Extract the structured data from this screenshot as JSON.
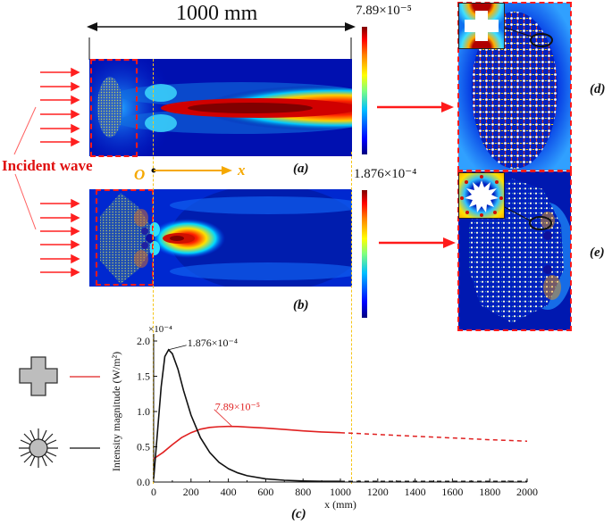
{
  "figure": {
    "dimension_label": "1000 mm",
    "incident_wave_label": "Incident wave",
    "origin_label": "O",
    "axis_x_label": "x",
    "panel_labels": {
      "a": "(a)",
      "b": "(b)",
      "c": "(c)",
      "d": "(d)",
      "e": "(e)"
    },
    "colorbar_a_max": "7.89×10⁻⁵",
    "colorbar_b_max": "1.876×10⁻⁴",
    "colors": {
      "accent_red": "#ff1a1a",
      "guide_yellow": "#f5c518",
      "field_deep_blue": "#00008f"
    },
    "legend": [
      {
        "shape": "cross-icon",
        "line_color": "#e02020",
        "description": "cross-shaped scatterer"
      },
      {
        "shape": "star-icon",
        "line_color": "#111111",
        "description": "star-shaped scatterer"
      }
    ]
  },
  "chart_data": {
    "type": "line",
    "title": "",
    "xlabel": "x (mm)",
    "ylabel": "Intensity magnitude (W/m²)",
    "y_multiplier": "×10⁻⁴",
    "xlim": [
      0,
      2000
    ],
    "ylim": [
      0,
      2.0
    ],
    "x_ticks": [
      "0",
      "200",
      "400",
      "600",
      "800",
      "1000",
      "1200",
      "1400",
      "1600",
      "1800",
      "2000"
    ],
    "y_ticks": [
      "0.0",
      "0.5",
      "1.0",
      "1.5",
      "2.0"
    ],
    "grid": false,
    "annotations": [
      {
        "text": "1.876×10⁻⁴",
        "x": 80,
        "y": 1.876,
        "series": "star"
      },
      {
        "text": "7.89×10⁻⁵",
        "x": 420,
        "y": 0.789,
        "series": "cross"
      }
    ],
    "series": [
      {
        "name": "cross",
        "color": "#e02020",
        "x": [
          0,
          50,
          100,
          150,
          200,
          250,
          300,
          350,
          400,
          450,
          500,
          600,
          700,
          800,
          900,
          1000
        ],
        "y": [
          0.33,
          0.42,
          0.53,
          0.63,
          0.7,
          0.75,
          0.775,
          0.785,
          0.789,
          0.787,
          0.78,
          0.765,
          0.745,
          0.725,
          0.71,
          0.7
        ],
        "extrapolated": {
          "x": [
            1000,
            1200,
            1400,
            1600,
            1800,
            2000
          ],
          "y": [
            0.7,
            0.675,
            0.65,
            0.625,
            0.6,
            0.58
          ]
        }
      },
      {
        "name": "star",
        "color": "#111111",
        "x": [
          0,
          20,
          40,
          60,
          80,
          100,
          130,
          160,
          200,
          250,
          300,
          350,
          400,
          450,
          500,
          600,
          700,
          800,
          900,
          1000
        ],
        "y": [
          0.05,
          0.7,
          1.35,
          1.78,
          1.876,
          1.82,
          1.6,
          1.3,
          0.95,
          0.63,
          0.42,
          0.28,
          0.19,
          0.13,
          0.09,
          0.045,
          0.025,
          0.015,
          0.01,
          0.01
        ],
        "extrapolated": {
          "x": [
            1000,
            1500,
            2000
          ],
          "y": [
            0.01,
            0.01,
            0.01
          ]
        }
      }
    ]
  }
}
